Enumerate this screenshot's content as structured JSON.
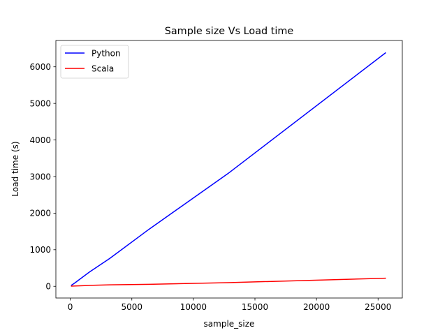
{
  "chart_data": {
    "type": "line",
    "title": "Sample size Vs Load time",
    "xlabel": "sample_size",
    "ylabel": "Load time (s)",
    "xlim": [
      -1170,
      26970
    ],
    "ylim": [
      -320,
      6720
    ],
    "xticks": [
      0,
      5000,
      10000,
      15000,
      20000,
      25000
    ],
    "xtick_labels": [
      "0",
      "5000",
      "10000",
      "15000",
      "20000",
      "25000"
    ],
    "yticks": [
      0,
      1000,
      2000,
      3000,
      4000,
      5000,
      6000
    ],
    "ytick_labels": [
      "0",
      "1000",
      "2000",
      "3000",
      "4000",
      "5000",
      "6000"
    ],
    "grid": false,
    "legend_position": "top-left",
    "series": [
      {
        "name": "Python",
        "color": "#0000ff",
        "x": [
          100,
          400,
          1600,
          3200,
          6400,
          12800,
          25600
        ],
        "y": [
          30,
          100,
          400,
          760,
          1560,
          3080,
          6380
        ]
      },
      {
        "name": "Scala",
        "color": "#ff0000",
        "x": [
          100,
          400,
          1600,
          3200,
          6400,
          12800,
          25600
        ],
        "y": [
          5,
          8,
          25,
          40,
          55,
          100,
          220
        ]
      }
    ]
  }
}
